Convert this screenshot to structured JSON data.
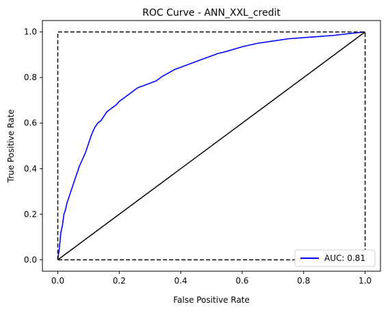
{
  "chart_data": {
    "type": "line",
    "title": "ROC Curve - ANN_XXL_credit",
    "xlabel": "False Positive Rate",
    "ylabel": "True Positive Rate",
    "xlim": [
      -0.05,
      1.05
    ],
    "ylim": [
      -0.05,
      1.05
    ],
    "xticks": [
      0.0,
      0.2,
      0.4,
      0.6,
      0.8,
      1.0
    ],
    "yticks": [
      0.0,
      0.2,
      0.4,
      0.6,
      0.8,
      1.0
    ],
    "xtick_labels": [
      "0.0",
      "0.2",
      "0.4",
      "0.6",
      "0.8",
      "1.0"
    ],
    "ytick_labels": [
      "0.0",
      "0.2",
      "0.4",
      "0.6",
      "0.8",
      "1.0"
    ],
    "grid": false,
    "legend_position": "lower-right",
    "series": [
      {
        "name": "AUC: 0.81",
        "color": "#0000ff",
        "style": "solid",
        "x": [
          0.0,
          0.005,
          0.01,
          0.015,
          0.02,
          0.025,
          0.03,
          0.04,
          0.05,
          0.06,
          0.07,
          0.08,
          0.09,
          0.1,
          0.11,
          0.12,
          0.13,
          0.14,
          0.15,
          0.16,
          0.17,
          0.18,
          0.19,
          0.2,
          0.22,
          0.24,
          0.26,
          0.28,
          0.3,
          0.32,
          0.34,
          0.36,
          0.38,
          0.4,
          0.42,
          0.45,
          0.48,
          0.5,
          0.52,
          0.55,
          0.6,
          0.65,
          0.7,
          0.75,
          0.8,
          0.85,
          0.9,
          0.95,
          1.0
        ],
        "y": [
          0.0,
          0.05,
          0.12,
          0.15,
          0.2,
          0.22,
          0.25,
          0.29,
          0.33,
          0.37,
          0.41,
          0.44,
          0.47,
          0.51,
          0.55,
          0.58,
          0.6,
          0.61,
          0.63,
          0.65,
          0.66,
          0.67,
          0.68,
          0.695,
          0.715,
          0.735,
          0.755,
          0.765,
          0.775,
          0.785,
          0.805,
          0.82,
          0.835,
          0.845,
          0.855,
          0.87,
          0.885,
          0.895,
          0.905,
          0.915,
          0.935,
          0.95,
          0.96,
          0.97,
          0.975,
          0.98,
          0.985,
          0.993,
          1.0
        ]
      },
      {
        "name": "",
        "color": "#000000",
        "style": "solid",
        "x": [
          0.0,
          1.0
        ],
        "y": [
          0.0,
          1.0
        ]
      },
      {
        "name": "",
        "color": "#000000",
        "style": "dashed",
        "x": [
          0.0,
          0.0,
          1.0,
          1.0,
          0.0
        ],
        "y": [
          0.0,
          1.0,
          1.0,
          0.0,
          0.0
        ]
      }
    ],
    "legend": [
      {
        "label": "AUC: 0.81",
        "color": "#0000ff"
      }
    ]
  }
}
